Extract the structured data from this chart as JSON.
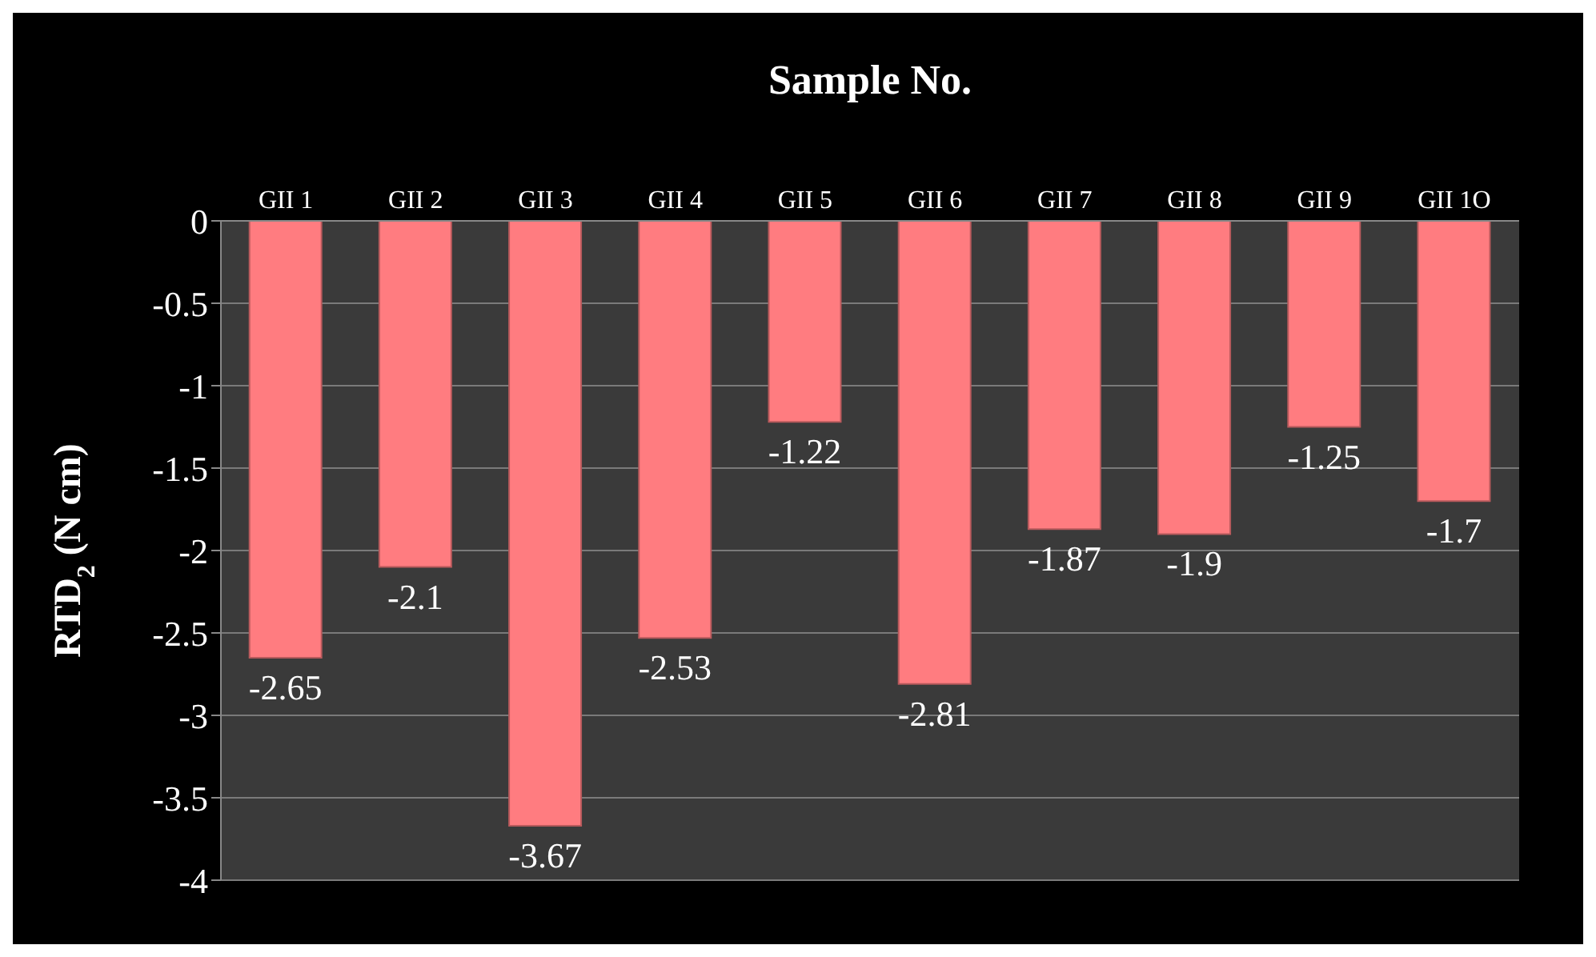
{
  "chart_data": {
    "type": "bar",
    "xlabel": "Sample No.",
    "ylabel": "RTD$_{2}$ (N cm)",
    "categories": [
      "GII 1",
      "GII 2",
      "GII 3",
      "GII 4",
      "GII 5",
      "GII 6",
      "GII 7",
      "GII 8",
      "GII 9",
      "GII 1O"
    ],
    "values": [
      -2.65,
      -2.1,
      -3.67,
      -2.53,
      -1.22,
      -2.81,
      -1.87,
      -1.9,
      -1.25,
      -1.7
    ],
    "color": "#ff7c80",
    "ylim": [
      -4,
      0
    ],
    "yticks": [
      -4,
      -3.5,
      -3,
      -2.5,
      -2,
      -1.5,
      -1,
      -0.5,
      0
    ],
    "grid": "y",
    "data_labels": true
  }
}
